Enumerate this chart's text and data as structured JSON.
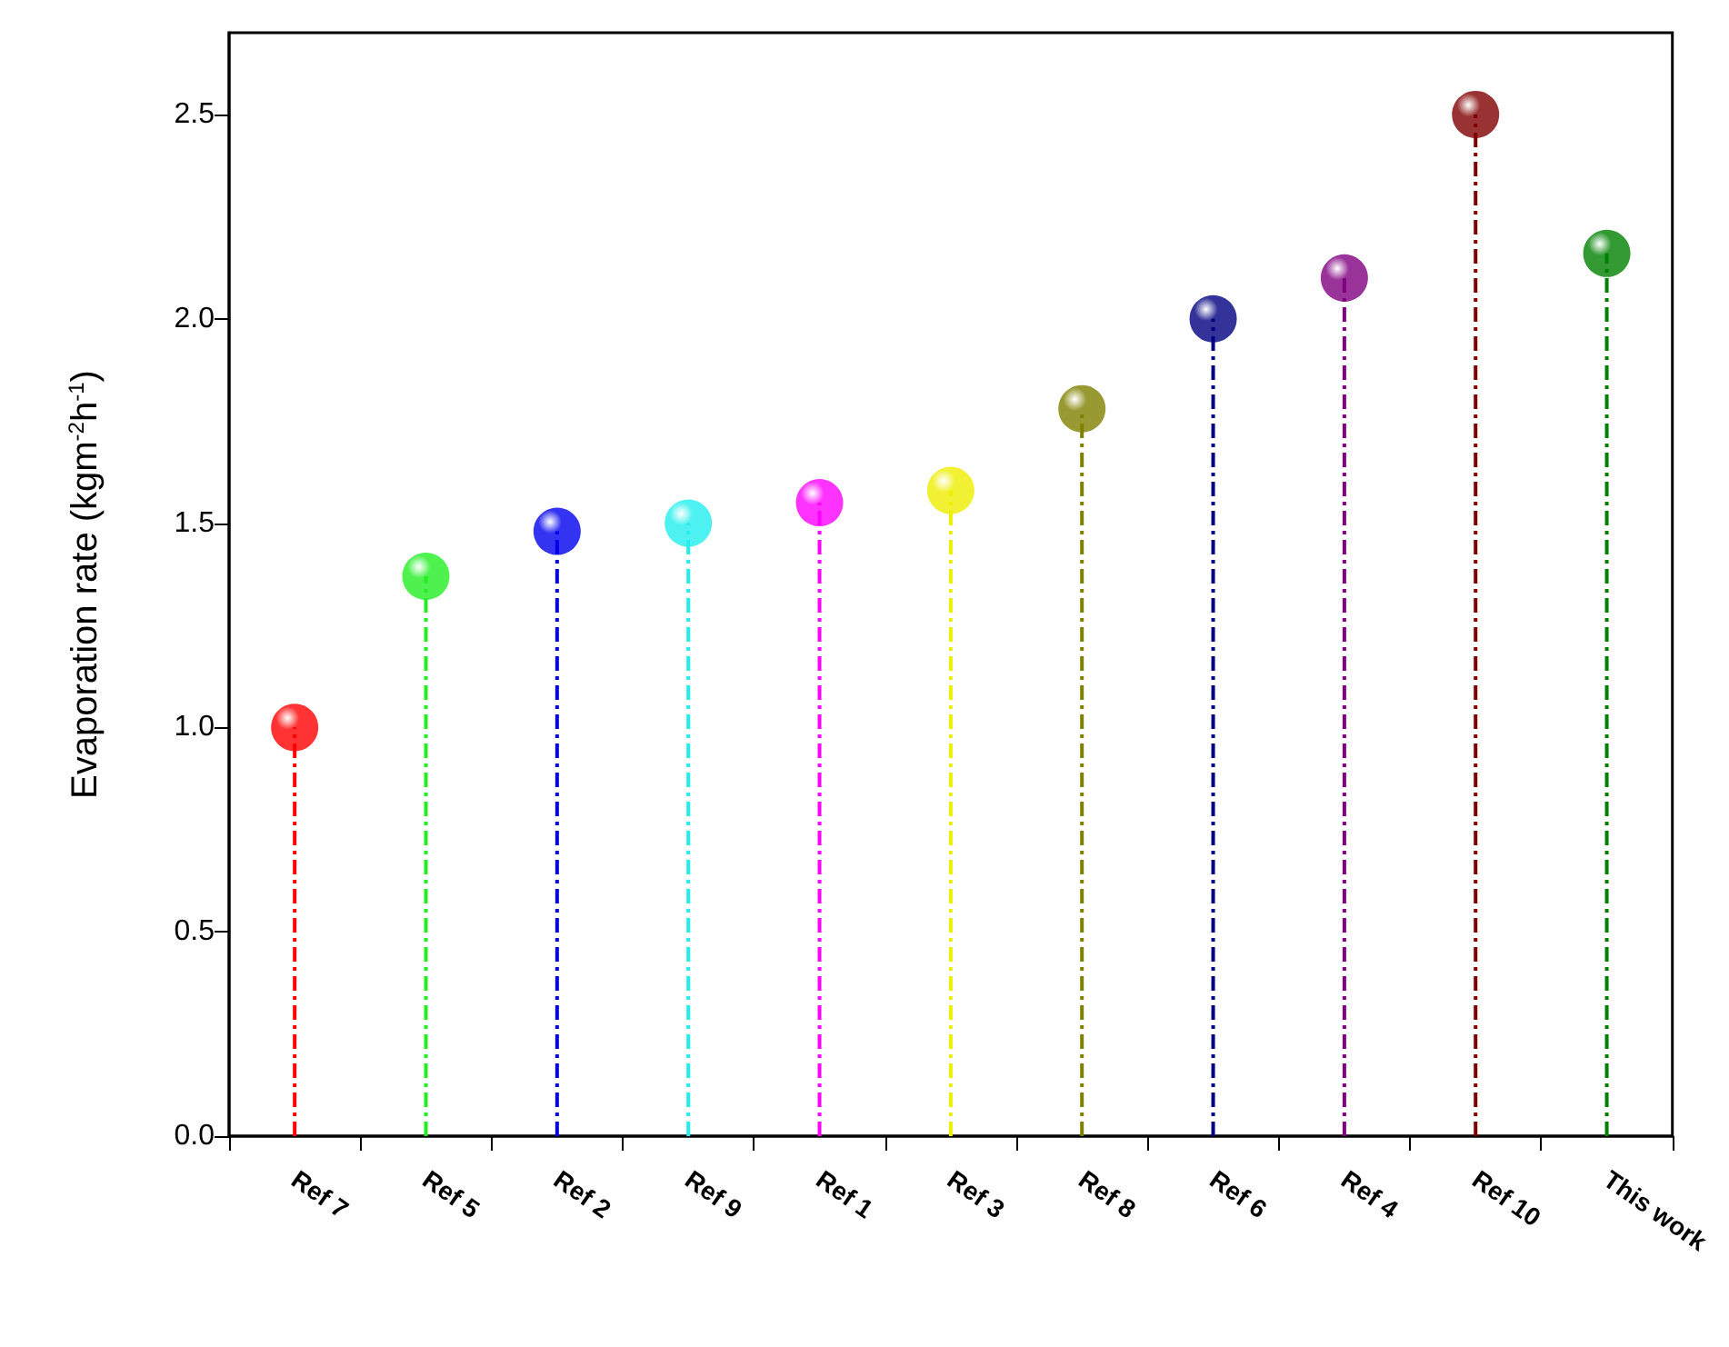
{
  "chart_data": {
    "type": "lollipop",
    "ylabel": "Evaporation rate (kgm$^{-2}$h$^{-1}$)",
    "categories": [
      "Ref 7",
      "Ref 5",
      "Ref 2",
      "Ref 9",
      "Ref 1",
      "Ref 3",
      "Ref 8",
      "Ref 6",
      "Ref 4",
      "Ref 10",
      "This work"
    ],
    "values": [
      1.0,
      1.37,
      1.48,
      1.5,
      1.55,
      1.58,
      1.78,
      2.0,
      2.1,
      2.5,
      2.16
    ],
    "colors": [
      "#ff0000",
      "#22ee22",
      "#0000ee",
      "#22eeee",
      "#ff00ff",
      "#eeee00",
      "#808000",
      "#000080",
      "#800080",
      "#800000",
      "#008000"
    ],
    "ylim": [
      0,
      2.7
    ],
    "yticks": [
      {
        "value": 0,
        "label": "0.0"
      },
      0.5,
      {
        "value": 1,
        "label": "1.0"
      },
      1.5,
      {
        "value": 2,
        "label": "2.0"
      },
      2.5
    ],
    "grid": false,
    "marker": "circle",
    "line_style": "dashed"
  }
}
